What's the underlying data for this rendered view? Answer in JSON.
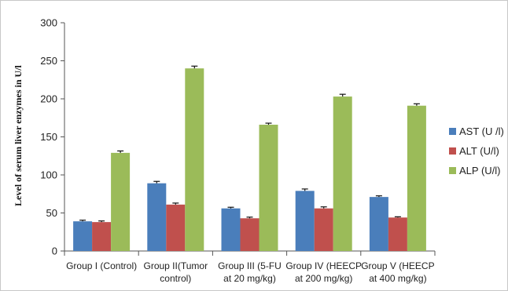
{
  "chart_data": {
    "type": "bar",
    "title": "",
    "xlabel": "",
    "ylabel": "Level  of serum liver enzymes in U/l",
    "ylim": [
      0,
      300
    ],
    "yticks": [
      0,
      50,
      100,
      150,
      200,
      250,
      300
    ],
    "grid": false,
    "legend_position": "right",
    "categories": [
      [
        "Group I (Control)"
      ],
      [
        "Group II(Tumor",
        "control)"
      ],
      [
        "Group III (5-FU",
        "at 20 mg/kg)"
      ],
      [
        "Group IV (HEECP",
        "at 200 mg/kg)"
      ],
      [
        "Group V (HEECP",
        "at 400 mg/kg)"
      ]
    ],
    "series": [
      {
        "name": "AST (U  /l)",
        "color": "#4a7ebb",
        "values": [
          39,
          89,
          56,
          79,
          71
        ],
        "errors": [
          1.5,
          2.5,
          1.5,
          2.5,
          1.5
        ]
      },
      {
        "name": "ALT (U/l)",
        "color": "#c0504d",
        "values": [
          38,
          61,
          43,
          56,
          44
        ],
        "errors": [
          1.5,
          2,
          1.5,
          2,
          1
        ]
      },
      {
        "name": "ALP (U/l)",
        "color": "#9bbb59",
        "values": [
          129,
          240,
          166,
          203,
          191
        ],
        "errors": [
          2.5,
          3,
          2,
          3,
          2.5
        ]
      }
    ]
  }
}
